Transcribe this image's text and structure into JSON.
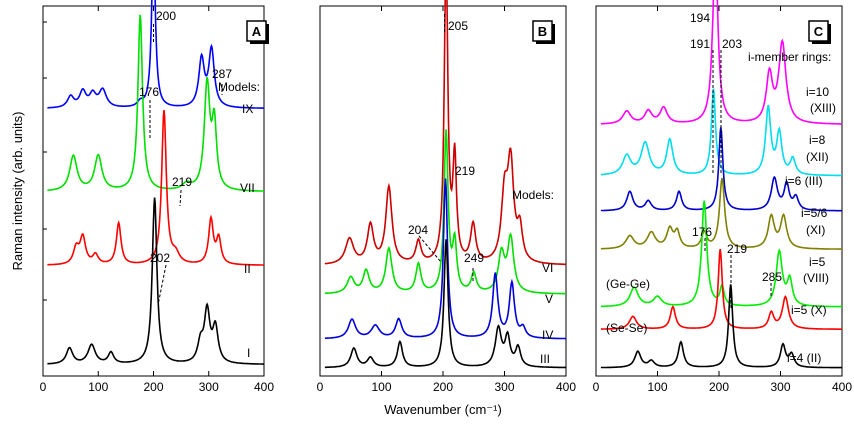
{
  "figure": {
    "ylabel": "Raman intensity (arb. units)",
    "xlabel": "Wavenumber (cm⁻¹)"
  },
  "chart_data": [
    {
      "type": "line",
      "panel_label": "A",
      "xlim": [
        0,
        400
      ],
      "xticks": [
        0,
        100,
        200,
        300,
        400
      ],
      "header_text": "Models:",
      "series": [
        {
          "name": "IX",
          "color": "#0000ff",
          "offset": 0.82,
          "peaks": [
            [
              50,
              0.035,
              7
            ],
            [
              72,
              0.05,
              7
            ],
            [
              90,
              0.04,
              7
            ],
            [
              108,
              0.055,
              8
            ],
            [
              176,
              0.015,
              6
            ],
            [
              200,
              0.52,
              4
            ],
            [
              287,
              0.15,
              6
            ],
            [
              305,
              0.18,
              6
            ]
          ]
        },
        {
          "name": "VII",
          "color": "#00e000",
          "offset": 0.56,
          "peaks": [
            [
              55,
              0.11,
              8
            ],
            [
              100,
              0.11,
              8
            ],
            [
              176,
              0.55,
              5
            ],
            [
              260,
              0.02,
              10
            ],
            [
              297,
              0.33,
              6
            ],
            [
              310,
              0.2,
              5
            ]
          ]
        },
        {
          "name": "II",
          "color": "#ff0000",
          "offset": 0.33,
          "peaks": [
            [
              60,
              0.05,
              6
            ],
            [
              72,
              0.085,
              6
            ],
            [
              95,
              0.03,
              6
            ],
            [
              137,
              0.13,
              5
            ],
            [
              219,
              0.48,
              5
            ],
            [
              240,
              0.03,
              8
            ],
            [
              304,
              0.14,
              5
            ],
            [
              318,
              0.08,
              5
            ]
          ]
        },
        {
          "name": "I",
          "color": "#000000",
          "offset": 0.02,
          "peaks": [
            [
              48,
              0.05,
              7
            ],
            [
              88,
              0.06,
              8
            ],
            [
              123,
              0.035,
              6
            ],
            [
              202,
              0.52,
              5
            ],
            [
              285,
              0.06,
              6
            ],
            [
              297,
              0.16,
              6
            ],
            [
              312,
              0.11,
              6
            ]
          ]
        }
      ],
      "annotations": [
        {
          "text": "200",
          "x": 200
        },
        {
          "text": "176",
          "x": 176
        },
        {
          "text": "287",
          "x": 287
        },
        {
          "text": "219",
          "x": 219
        },
        {
          "text": "202",
          "x": 202
        }
      ]
    },
    {
      "type": "line",
      "panel_label": "B",
      "xlim": [
        0,
        400
      ],
      "xticks": [
        0,
        100,
        200,
        300,
        400
      ],
      "header_text": "Models:",
      "series": [
        {
          "name": "VI",
          "color": "#cc0000",
          "offset": 0.33,
          "peaks": [
            [
              48,
              0.08,
              8
            ],
            [
              82,
              0.12,
              6
            ],
            [
              112,
              0.24,
              6
            ],
            [
              160,
              0.07,
              5
            ],
            [
              205,
              0.95,
              3.5
            ],
            [
              219,
              0.32,
              3.5
            ],
            [
              249,
              0.12,
              5
            ],
            [
              300,
              0.2,
              6
            ],
            [
              310,
              0.3,
              6
            ],
            [
              325,
              0.1,
              5
            ]
          ]
        },
        {
          "name": "V",
          "color": "#00e000",
          "offset": 0.24,
          "peaks": [
            [
              50,
              0.05,
              7
            ],
            [
              75,
              0.07,
              6
            ],
            [
              112,
              0.14,
              6
            ],
            [
              160,
              0.09,
              5
            ],
            [
              205,
              0.5,
              4
            ],
            [
              219,
              0.15,
              4
            ],
            [
              250,
              0.06,
              5
            ],
            [
              295,
              0.12,
              6
            ],
            [
              310,
              0.17,
              6
            ]
          ]
        },
        {
          "name": "IV",
          "color": "#0000dd",
          "offset": 0.1,
          "peaks": [
            [
              52,
              0.06,
              7
            ],
            [
              90,
              0.04,
              8
            ],
            [
              128,
              0.06,
              6
            ],
            [
              204,
              0.5,
              4
            ],
            [
              285,
              0.2,
              5
            ],
            [
              312,
              0.17,
              5
            ],
            [
              330,
              0.03,
              5
            ]
          ]
        },
        {
          "name": "III",
          "color": "#000000",
          "offset": 0.01,
          "peaks": [
            [
              55,
              0.06,
              6
            ],
            [
              82,
              0.03,
              6
            ],
            [
              130,
              0.08,
              5
            ],
            [
              205,
              0.4,
              4
            ],
            [
              290,
              0.12,
              6
            ],
            [
              305,
              0.09,
              5
            ],
            [
              322,
              0.06,
              5
            ]
          ]
        }
      ],
      "annotations": [
        {
          "text": "205",
          "x": 205
        },
        {
          "text": "219",
          "x": 219
        },
        {
          "text": "204",
          "x": 204
        },
        {
          "text": "249",
          "x": 249
        }
      ]
    },
    {
      "type": "line",
      "panel_label": "C",
      "xlim": [
        0,
        400
      ],
      "xticks": [
        0,
        100,
        200,
        300,
        400
      ],
      "header_text": "i-member rings:",
      "series": [
        {
          "name": "i=10",
          "sublabel": "(XIII)",
          "color": "#ff00ff",
          "offset": 0.77,
          "peaks": [
            [
              50,
              0.04,
              8
            ],
            [
              85,
              0.04,
              7
            ],
            [
              110,
              0.05,
              7
            ],
            [
              194,
              0.55,
              5
            ],
            [
              282,
              0.15,
              6
            ],
            [
              303,
              0.25,
              7
            ]
          ]
        },
        {
          "name": "i=8",
          "sublabel": "(XII)",
          "color": "#00ddee",
          "offset": 0.61,
          "peaks": [
            [
              50,
              0.06,
              8
            ],
            [
              80,
              0.1,
              8
            ],
            [
              120,
              0.11,
              6
            ],
            [
              191,
              0.27,
              4
            ],
            [
              280,
              0.21,
              5
            ],
            [
              298,
              0.13,
              5
            ],
            [
              320,
              0.05,
              5
            ]
          ]
        },
        {
          "name": "i=6 (III)",
          "color": "#0000cc",
          "offset": 0.5,
          "peaks": [
            [
              55,
              0.06,
              6
            ],
            [
              85,
              0.03,
              6
            ],
            [
              135,
              0.06,
              5
            ],
            [
              203,
              0.26,
              4
            ],
            [
              290,
              0.1,
              6
            ],
            [
              310,
              0.08,
              5
            ],
            [
              325,
              0.04,
              5
            ]
          ]
        },
        {
          "name": "i=5/6",
          "sublabel": "(XI)",
          "color": "#808000",
          "offset": 0.38,
          "peaks": [
            [
              55,
              0.04,
              8
            ],
            [
              90,
              0.05,
              8
            ],
            [
              120,
              0.06,
              6
            ],
            [
              132,
              0.05,
              5
            ],
            [
              176,
              0.05,
              5
            ],
            [
              205,
              0.22,
              5
            ],
            [
              285,
              0.1,
              6
            ],
            [
              305,
              0.1,
              6
            ]
          ]
        },
        {
          "name": "i=5",
          "sublabel": "(VIII)",
          "color": "#00ee00",
          "offset": 0.2,
          "peaks": [
            [
              62,
              0.06,
              8
            ],
            [
              100,
              0.03,
              8
            ],
            [
              176,
              0.33,
              5
            ],
            [
              205,
              0.06,
              4
            ],
            [
              298,
              0.17,
              6
            ],
            [
              315,
              0.08,
              5
            ]
          ]
        },
        {
          "name": "i=5 (X)",
          "color": "#ff0000",
          "offset": 0.13,
          "peaks": [
            [
              60,
              0.04,
              7
            ],
            [
              125,
              0.07,
              5
            ],
            [
              202,
              0.25,
              4
            ],
            [
              285,
              0.05,
              5
            ],
            [
              308,
              0.1,
              6
            ]
          ]
        },
        {
          "name": "i=4 (II)",
          "color": "#000000",
          "offset": 0.01,
          "peaks": [
            [
              68,
              0.05,
              6
            ],
            [
              90,
              0.02,
              6
            ],
            [
              138,
              0.08,
              5
            ],
            [
              219,
              0.26,
              4
            ],
            [
              304,
              0.07,
              5
            ],
            [
              318,
              0.04,
              5
            ]
          ]
        }
      ],
      "annotations": [
        {
          "text": "194",
          "x": 194
        },
        {
          "text": "191",
          "x": 191
        },
        {
          "text": "203",
          "x": 203
        },
        {
          "text": "176",
          "x": 176
        },
        {
          "text": "219",
          "x": 219
        },
        {
          "text": "285",
          "x": 285
        },
        {
          "text": "(Ge-Ge)",
          "x": 55
        },
        {
          "text": "(Se-Se)",
          "x": 55
        }
      ]
    }
  ]
}
